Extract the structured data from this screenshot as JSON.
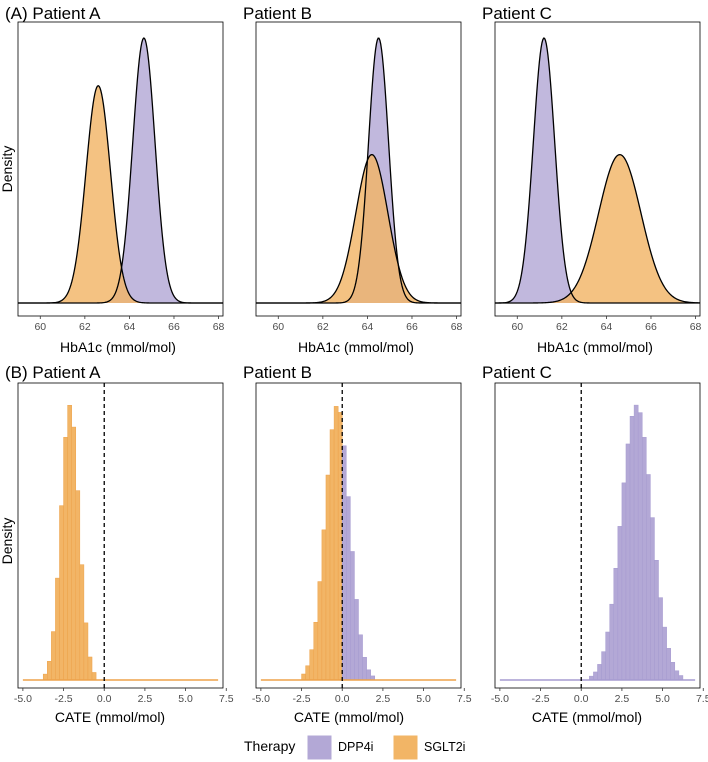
{
  "colors": {
    "DPP4i": "#b3a8d6",
    "SGLT2i": "#f2b566",
    "DPP4i_line": "#a69bd0",
    "SGLT2i_line": "#eda24a"
  },
  "density_panels": {
    "ylabel": "Density",
    "xlabel": "HbA1c (mmol/mol)",
    "xlim": [
      59,
      68.2
    ],
    "ticks": [
      60,
      62,
      64,
      66,
      68
    ],
    "tick_labels": [
      "60",
      "62",
      "64",
      "66",
      "68"
    ],
    "panels": [
      {
        "title": "(A) Patient A",
        "DPP4i": {
          "mean": 64.65,
          "sd": 0.5,
          "peak": 1.0
        },
        "SGLT2i": {
          "mean": 62.6,
          "sd": 0.55,
          "peak": 0.82
        }
      },
      {
        "title": "Patient B",
        "DPP4i": {
          "mean": 64.5,
          "sd": 0.45,
          "peak": 1.0
        },
        "SGLT2i": {
          "mean": 64.2,
          "sd": 0.72,
          "peak": 0.56
        }
      },
      {
        "title": "Patient C",
        "DPP4i": {
          "mean": 61.2,
          "sd": 0.48,
          "peak": 1.0
        },
        "SGLT2i": {
          "mean": 64.6,
          "sd": 0.95,
          "peak": 0.56
        }
      }
    ]
  },
  "chart_data": [
    {
      "type": "area",
      "title": "(A) Patient A",
      "xlabel": "HbA1c (mmol/mol)",
      "ylabel": "Density",
      "series": [
        {
          "name": "DPP4i",
          "peak_x": 64.65
        },
        {
          "name": "SGLT2i",
          "peak_x": 62.6
        }
      ]
    },
    {
      "type": "area",
      "title": "Patient B",
      "xlabel": "HbA1c (mmol/mol)",
      "ylabel": "",
      "series": [
        {
          "name": "DPP4i",
          "peak_x": 64.5
        },
        {
          "name": "SGLT2i",
          "peak_x": 64.2
        }
      ]
    },
    {
      "type": "area",
      "title": "Patient C",
      "xlabel": "HbA1c (mmol/mol)",
      "ylabel": "",
      "series": [
        {
          "name": "DPP4i",
          "peak_x": 61.2
        },
        {
          "name": "SGLT2i",
          "peak_x": 64.6
        }
      ]
    },
    {
      "type": "bar",
      "title": "(B) Patient A",
      "xlabel": "CATE (mmol/mol)",
      "ylabel": "Density",
      "bin_start": -5.0,
      "bin_width": 0.25,
      "reference_line_x": 0,
      "series": [
        {
          "name": "SGLT2i",
          "center": -2.1,
          "sd": 0.55
        }
      ]
    },
    {
      "type": "bar",
      "title": "Patient B",
      "xlabel": "CATE (mmol/mol)",
      "ylabel": "",
      "bin_start": -5.0,
      "bin_width": 0.25,
      "reference_line_x": 0,
      "series": [
        {
          "name": "SGLT2i",
          "x_range": [
            -5.0,
            0.0
          ],
          "center": -0.3,
          "sd": 0.75
        },
        {
          "name": "DPP4i",
          "x_range": [
            0.0,
            7.0
          ],
          "center": -0.3,
          "sd": 0.75
        }
      ]
    },
    {
      "type": "bar",
      "title": "Patient C",
      "xlabel": "CATE (mmol/mol)",
      "ylabel": "",
      "bin_start": -5.0,
      "bin_width": 0.25,
      "reference_line_x": 0,
      "series": [
        {
          "name": "DPP4i",
          "center": 3.4,
          "sd": 0.95
        }
      ]
    }
  ],
  "hist_panels": {
    "ylabel": "Density",
    "xlabel": "CATE (mmol/mol)",
    "xlim": [
      -5.3,
      7.3
    ],
    "ticks": [
      -5,
      -2.5,
      0,
      2.5,
      5,
      7.5
    ],
    "tick_labels": [
      "-5.0",
      "-2.5",
      "0.0",
      "2.5",
      "5.0",
      "7.5"
    ],
    "titles": [
      "(B) Patient A",
      "Patient B",
      "Patient C"
    ]
  },
  "legend": {
    "title": "Therapy",
    "items": [
      {
        "name": "DPP4i",
        "label": "DPP4i"
      },
      {
        "name": "SGLT2i",
        "label": "SGLT2i"
      }
    ]
  }
}
